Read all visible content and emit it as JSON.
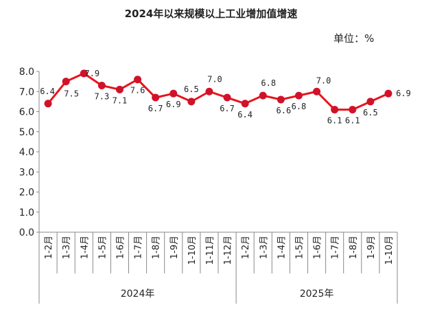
{
  "chart_data": {
    "type": "line",
    "title": "2024年以来规模以上工业增加值增速",
    "unit": "单位：%",
    "ylim": [
      0,
      8
    ],
    "yticks": [
      "0.0",
      "1.0",
      "2.0",
      "3.0",
      "4.0",
      "5.0",
      "6.0",
      "7.0",
      "8.0"
    ],
    "categories": [
      "1-2月",
      "1-3月",
      "1-4月",
      "1-5月",
      "1-6月",
      "1-7月",
      "1-8月",
      "1-9月",
      "1-10月",
      "1-11月",
      "1-12月",
      "1-2月",
      "1-3月",
      "1-4月",
      "1-5月",
      "1-6月",
      "1-7月",
      "1-8月",
      "1-9月",
      "1-10月"
    ],
    "groups": [
      {
        "label": "2024年",
        "count": 11
      },
      {
        "label": "2025年",
        "count": 9
      }
    ],
    "series": [
      {
        "name": "规模以上工业增加值增速",
        "values": [
          6.4,
          7.5,
          7.9,
          7.3,
          7.1,
          7.6,
          6.7,
          6.9,
          6.5,
          7.0,
          6.7,
          6.4,
          6.8,
          6.6,
          6.8,
          7.0,
          6.1,
          6.1,
          6.5,
          6.9
        ],
        "labels": [
          "6.4",
          "7.5",
          "7.9",
          "7.3",
          "7.1",
          "7.6",
          "6.7",
          "6.9",
          "6.5",
          "7.0",
          "6.7",
          "6.4",
          "6.8",
          "6.6",
          "6.8",
          "7.0",
          "6.1",
          "6.1",
          "6.5",
          "6.9"
        ]
      }
    ],
    "line_color": "#e8141b",
    "marker_color": "#d0122a",
    "axis_color": "#888888"
  }
}
